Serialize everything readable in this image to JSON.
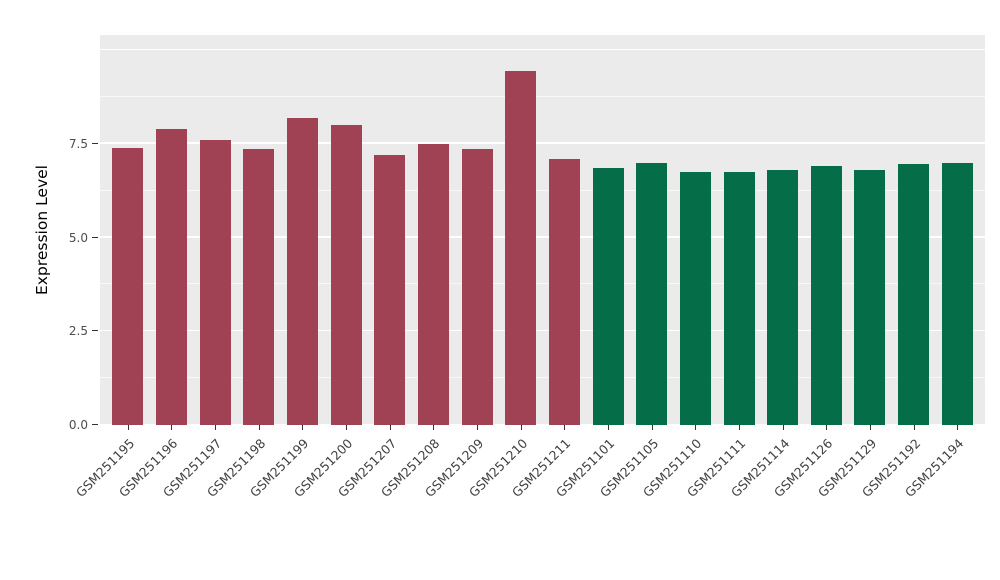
{
  "chart_data": {
    "type": "bar",
    "title": "",
    "xlabel": "",
    "ylabel": "Expression Level",
    "ylim": [
      0,
      10.4
    ],
    "yticks": [
      0,
      2.5,
      5,
      7.5
    ],
    "ytick_labels": [
      "0.0",
      "2.5",
      "5.0",
      "7.5"
    ],
    "grid_major": [
      0,
      2.5,
      5,
      7.5,
      10
    ],
    "grid_minor": [
      1.25,
      3.75,
      6.25,
      8.75
    ],
    "grid_on": true,
    "legend_position": "none",
    "panel_bg": "#EBEBEB",
    "colors": {
      "groupA": "#A04253",
      "groupB": "#056E49"
    },
    "bars": [
      {
        "label": "GSM251195",
        "value": 7.4,
        "group": "groupA"
      },
      {
        "label": "GSM251196",
        "value": 7.9,
        "group": "groupA"
      },
      {
        "label": "GSM251197",
        "value": 7.6,
        "group": "groupA"
      },
      {
        "label": "GSM251198",
        "value": 7.35,
        "group": "groupA"
      },
      {
        "label": "GSM251199",
        "value": 8.2,
        "group": "groupA"
      },
      {
        "label": "GSM251200",
        "value": 8.0,
        "group": "groupA"
      },
      {
        "label": "GSM251207",
        "value": 7.2,
        "group": "groupA"
      },
      {
        "label": "GSM251208",
        "value": 7.5,
        "group": "groupA"
      },
      {
        "label": "GSM251209",
        "value": 7.35,
        "group": "groupA"
      },
      {
        "label": "GSM251210",
        "value": 9.45,
        "group": "groupA"
      },
      {
        "label": "GSM251211",
        "value": 7.1,
        "group": "groupA"
      },
      {
        "label": "GSM251101",
        "value": 6.85,
        "group": "groupB"
      },
      {
        "label": "GSM251105",
        "value": 7.0,
        "group": "groupB"
      },
      {
        "label": "GSM251110",
        "value": 6.75,
        "group": "groupB"
      },
      {
        "label": "GSM251111",
        "value": 6.75,
        "group": "groupB"
      },
      {
        "label": "GSM251114",
        "value": 6.8,
        "group": "groupB"
      },
      {
        "label": "GSM251126",
        "value": 6.9,
        "group": "groupB"
      },
      {
        "label": "GSM251129",
        "value": 6.8,
        "group": "groupB"
      },
      {
        "label": "GSM251192",
        "value": 6.95,
        "group": "groupB"
      },
      {
        "label": "GSM251194",
        "value": 7.0,
        "group": "groupB"
      }
    ]
  }
}
